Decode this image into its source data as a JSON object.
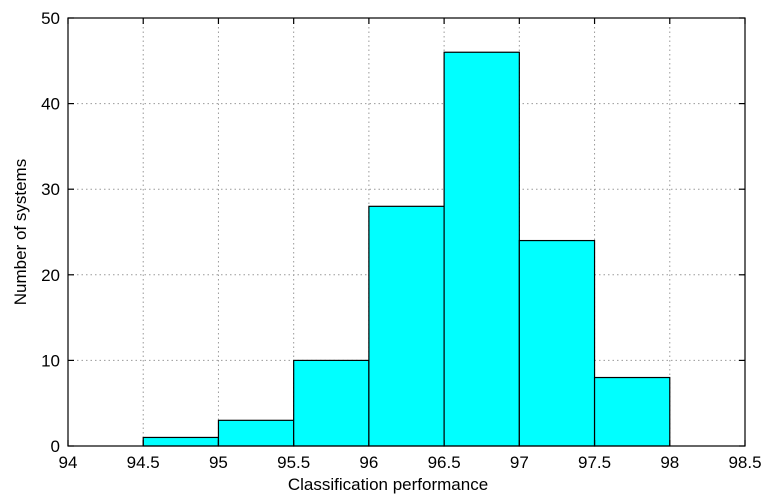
{
  "chart_data": {
    "type": "bar",
    "title": "",
    "xlabel": "Classification performance",
    "ylabel": "Number of systems",
    "bins": [
      {
        "start": 94.5,
        "end": 95.0,
        "value": 1
      },
      {
        "start": 95.0,
        "end": 95.5,
        "value": 3
      },
      {
        "start": 95.5,
        "end": 96.0,
        "value": 10
      },
      {
        "start": 96.0,
        "end": 96.5,
        "value": 28
      },
      {
        "start": 96.5,
        "end": 97.0,
        "value": 46
      },
      {
        "start": 97.0,
        "end": 97.5,
        "value": 24
      },
      {
        "start": 97.5,
        "end": 98.0,
        "value": 8
      }
    ],
    "xlim": [
      94,
      98.5
    ],
    "ylim": [
      0,
      50
    ],
    "xticks": [
      "94",
      "94.5",
      "95",
      "95.5",
      "96",
      "96.5",
      "97",
      "97.5",
      "98",
      "98.5"
    ],
    "yticks": [
      "0",
      "10",
      "20",
      "30",
      "40",
      "50"
    ],
    "grid": true,
    "bar_color": "#00ffff",
    "edge_color": "#000000"
  }
}
